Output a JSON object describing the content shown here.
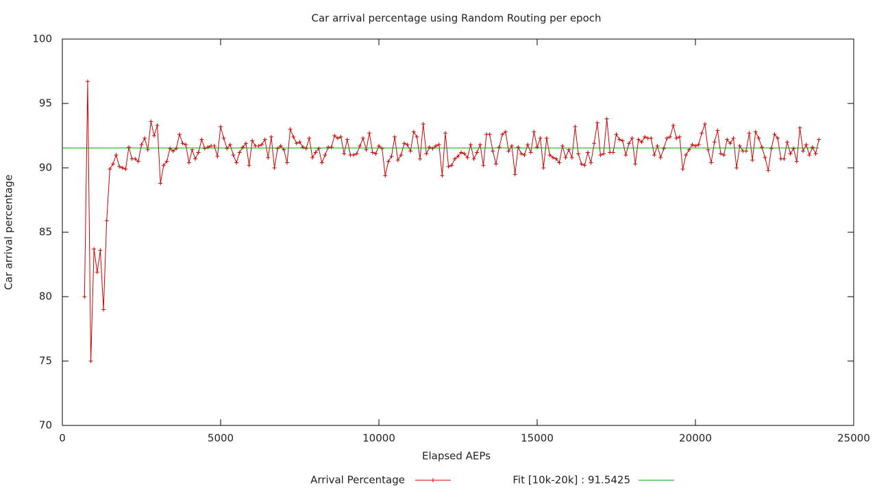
{
  "chart_data": {
    "type": "line",
    "title": "Car arrival percentage using Random Routing per epoch",
    "xlabel": "Elapsed AEPs",
    "ylabel": "Car arrival percentage",
    "xlim": [
      0,
      25000
    ],
    "xticks": [
      0,
      5000,
      10000,
      15000,
      20000,
      25000
    ],
    "ylim": [
      70,
      100
    ],
    "yticks": [
      70,
      75,
      80,
      85,
      90,
      95,
      100
    ],
    "series": [
      {
        "name": "Arrival Percentage",
        "color": "#cc0000",
        "x": [
          700,
          800,
          900,
          1000,
          1100,
          1200,
          1300,
          1400,
          1500,
          1600,
          1700,
          1800,
          1900,
          2000,
          2100,
          2200,
          2300,
          2400,
          2500,
          2600,
          2700,
          2800,
          2900,
          3000,
          3100,
          3200,
          3300,
          3400,
          3500,
          3600,
          3700,
          3800,
          3900,
          4000,
          4100,
          4200,
          4300,
          4400,
          4500,
          4600,
          4700,
          4800,
          4900,
          5000,
          5100,
          5200,
          5300,
          5400,
          5500,
          5600,
          5700,
          5800,
          5900,
          6000,
          6100,
          6200,
          6300,
          6400,
          6500,
          6600,
          6700,
          6800,
          6900,
          7000,
          7100,
          7200,
          7300,
          7400,
          7500,
          7600,
          7700,
          7800,
          7900,
          8000,
          8100,
          8200,
          8300,
          8400,
          8500,
          8600,
          8700,
          8800,
          8900,
          9000,
          9100,
          9200,
          9300,
          9400,
          9500,
          9600,
          9700,
          9800,
          9900,
          10000,
          10100,
          10200,
          10300,
          10400,
          10500,
          10600,
          10700,
          10800,
          10900,
          11000,
          11100,
          11200,
          11300,
          11400,
          11500,
          11600,
          11700,
          11800,
          11900,
          12000,
          12100,
          12200,
          12300,
          12400,
          12500,
          12600,
          12700,
          12800,
          12900,
          13000,
          13100,
          13200,
          13300,
          13400,
          13500,
          13600,
          13700,
          13800,
          13900,
          14000,
          14100,
          14200,
          14300,
          14400,
          14500,
          14600,
          14700,
          14800,
          14900,
          15000,
          15100,
          15200,
          15300,
          15400,
          15500,
          15600,
          15700,
          15800,
          15900,
          16000,
          16100,
          16200,
          16300,
          16400,
          16500,
          16600,
          16700,
          16800,
          16900,
          17000,
          17100,
          17200,
          17300,
          17400,
          17500,
          17600,
          17700,
          17800,
          17900,
          18000,
          18100,
          18200,
          18300,
          18400,
          18500,
          18600,
          18700,
          18800,
          18900,
          19000,
          19100,
          19200,
          19300,
          19400,
          19500,
          19600,
          19700,
          19800,
          19900,
          20000,
          20100,
          20200,
          20300,
          20400,
          20500,
          20600,
          20700,
          20800,
          20900,
          21000,
          21100,
          21200,
          21300,
          21400,
          21500,
          21600,
          21700,
          21800,
          21900,
          22000,
          22100,
          22200,
          22300,
          22400,
          22500,
          22600,
          22700,
          22800,
          22900,
          23000,
          23100,
          23200,
          23300,
          23400,
          23500,
          23600,
          23700,
          23800,
          23900
        ],
        "values": [
          80,
          96.7,
          75,
          83.7,
          81.9,
          83.6,
          79,
          85.9,
          89.9,
          90.3,
          91,
          90.1,
          90,
          89.9,
          91.6,
          90.7,
          90.7,
          90.5,
          91.8,
          92.3,
          91.4,
          93.6,
          92.5,
          93.3,
          88.8,
          90.2,
          90.5,
          91.5,
          91.3,
          91.5,
          92.6,
          91.9,
          91.8,
          90.4,
          91.4,
          90.7,
          91.2,
          92.2,
          91.5,
          91.6,
          91.7,
          91.7,
          90.9,
          93.2,
          92.3,
          91.5,
          91.8,
          91,
          90.4,
          91.2,
          91.6,
          91.9,
          90.2,
          92.1,
          91.7,
          91.7,
          91.8,
          92.2,
          90.8,
          92.4,
          90,
          91.5,
          91.7,
          91.4,
          90.4,
          93,
          92.4,
          91.9,
          92,
          91.6,
          91.5,
          92.3,
          90.8,
          91.2,
          91.5,
          90.4,
          91,
          91.6,
          91.6,
          92.5,
          92.3,
          92.4,
          91.1,
          92.2,
          91,
          91,
          91.1,
          91.7,
          92.3,
          91.4,
          92.7,
          91.2,
          91.1,
          91.7,
          91.5,
          89.4,
          90.5,
          90.9,
          92.4,
          90.6,
          91,
          91.9,
          91.8,
          91.3,
          92.8,
          92.4,
          90.7,
          93.4,
          91.1,
          91.6,
          91.5,
          91.7,
          91.8,
          89.4,
          92.7,
          90.1,
          90.2,
          90.7,
          90.9,
          91.2,
          91.1,
          90.8,
          91.8,
          90.7,
          91.2,
          91.8,
          90.2,
          92.6,
          92.6,
          91.3,
          90.3,
          91.6,
          92.6,
          92.8,
          91.3,
          91.7,
          89.5,
          91.6,
          91.1,
          91,
          91.8,
          91.2,
          92.8,
          91.6,
          92.3,
          90,
          92.3,
          91,
          90.8,
          90.7,
          90.4,
          91.7,
          90.8,
          91.4,
          90.8,
          93.2,
          91.1,
          90.3,
          90.2,
          91.2,
          90.4,
          91.9,
          93.5,
          91,
          91.1,
          93.8,
          91.2,
          91.2,
          92.6,
          92.2,
          92.1,
          91,
          91.9,
          92.3,
          90.3,
          92.2,
          92,
          92.4,
          92.3,
          92.3,
          91,
          91.7,
          90.8,
          91.5,
          92.3,
          92.4,
          93.3,
          92.3,
          92.4,
          89.9,
          91,
          91.4,
          91.8,
          91.7,
          91.8,
          92.7,
          93.4,
          91.4,
          90.4,
          92,
          92.9,
          91.1,
          91,
          92.2,
          91.9,
          92.3,
          90,
          91.7,
          91.3,
          91.3,
          92.7,
          90.6,
          92.8,
          92.3,
          91.6,
          90.8,
          89.8,
          91.5,
          92.6,
          92.3,
          90.7,
          90.7,
          92,
          91.1,
          91.5,
          90.5,
          93.1,
          91.3,
          91.8,
          91,
          91.6,
          91.1,
          92.2
        ]
      }
    ],
    "fit": {
      "name": "Fit [10k-20k] : 91.5425",
      "color": "#00a000",
      "value": 91.5425,
      "x": [
        0,
        23900
      ]
    }
  }
}
